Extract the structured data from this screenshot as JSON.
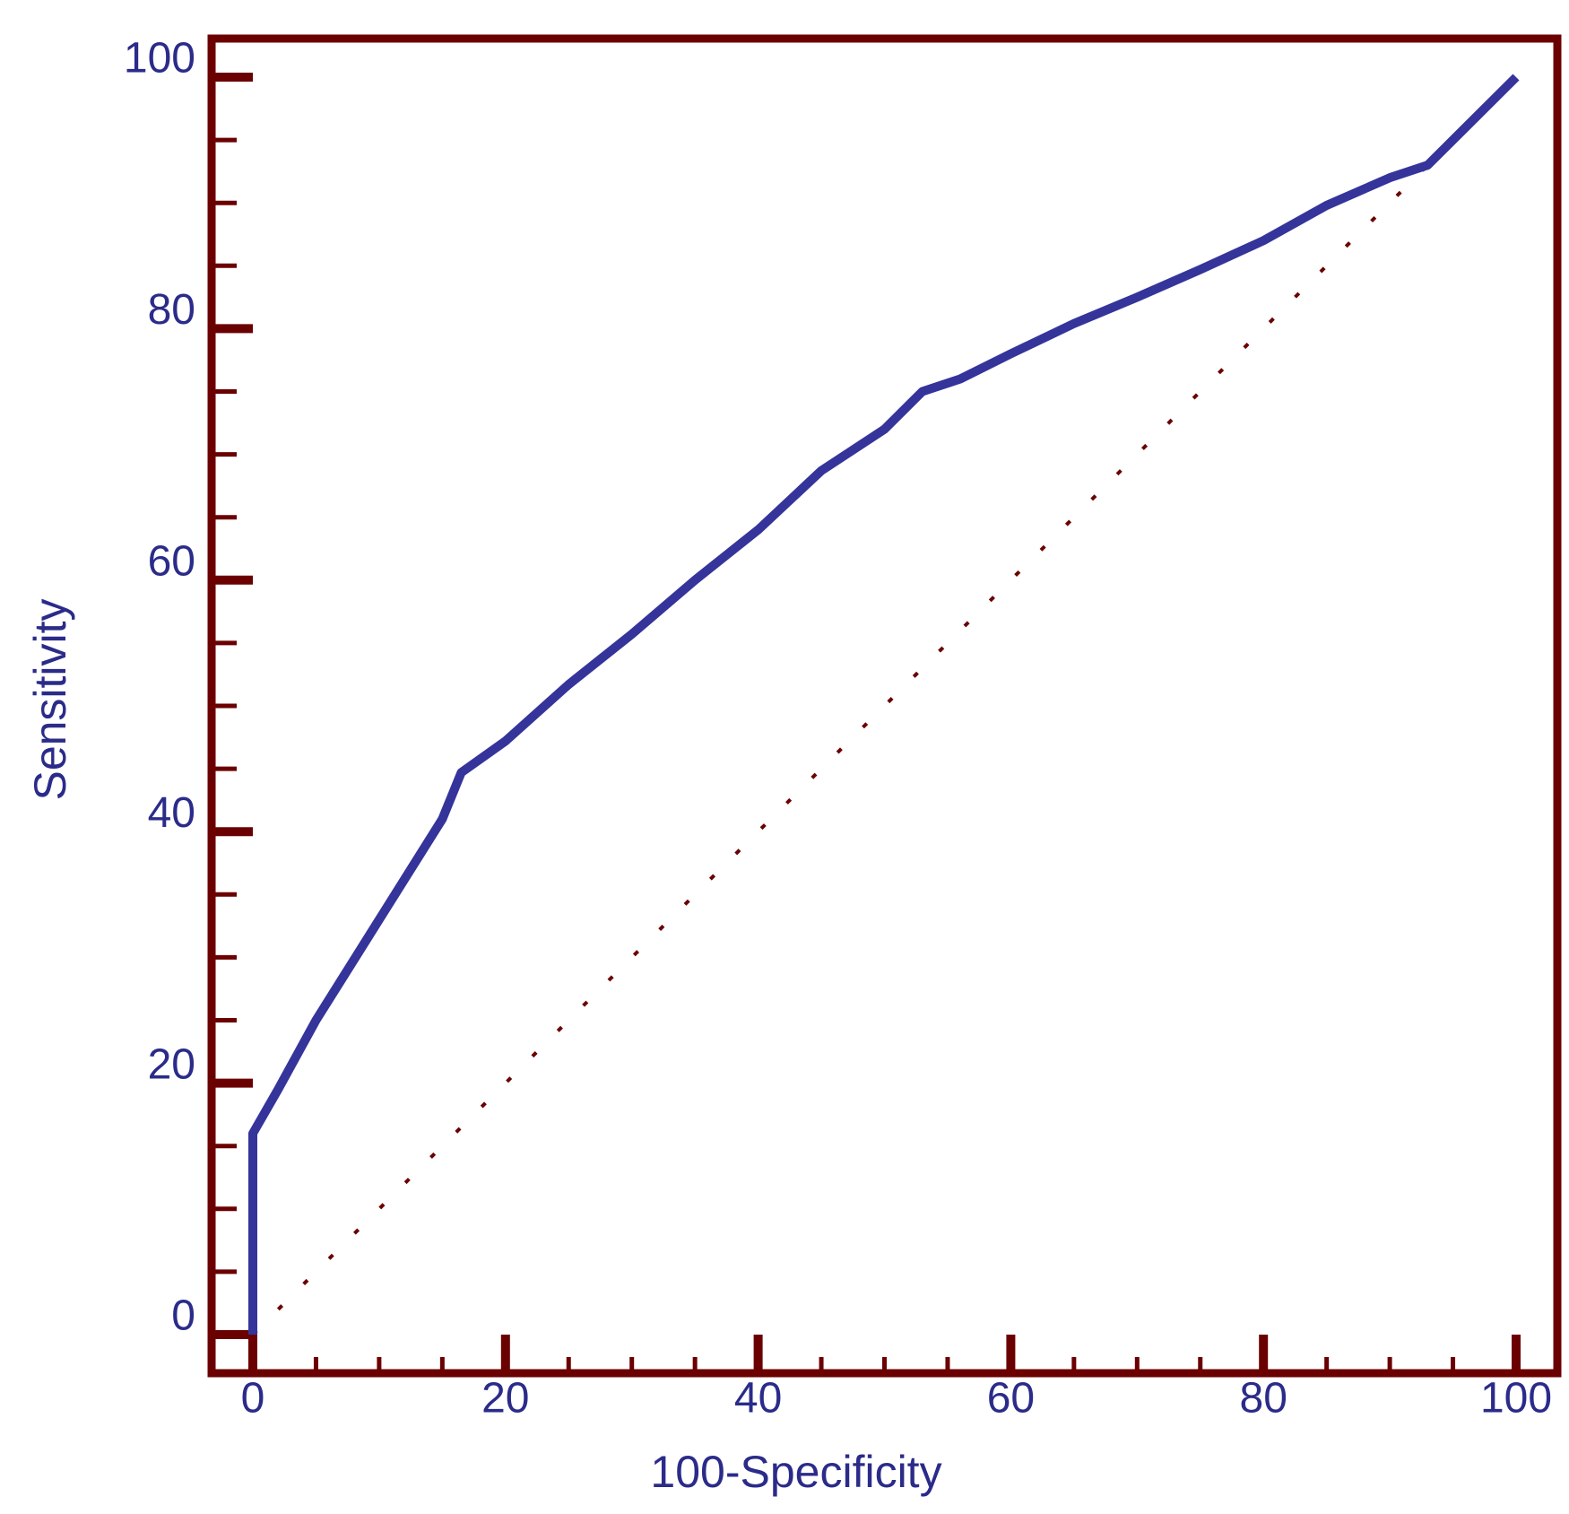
{
  "chart_data": {
    "type": "line",
    "x_label": "100-Specificity",
    "y_label": "Sensitivity",
    "xlim": [
      0,
      100
    ],
    "ylim": [
      0,
      100
    ],
    "xticks": [
      0,
      20,
      40,
      60,
      80,
      100
    ],
    "yticks": [
      0,
      20,
      40,
      60,
      80,
      100
    ],
    "x_minor_ticks": [
      5,
      10,
      15,
      25,
      30,
      35,
      45,
      50,
      55,
      65,
      70,
      75,
      85,
      90,
      95
    ],
    "y_minor_ticks": [
      5,
      10,
      15,
      25,
      30,
      35,
      45,
      50,
      55,
      65,
      70,
      75,
      85,
      90,
      95
    ],
    "frame_color": "#6b0000",
    "series": [
      {
        "color": "#35349a",
        "style": "solid",
        "x": [
          0,
          0,
          2,
          5,
          10,
          15,
          16.5,
          20,
          25,
          30,
          35,
          40,
          45,
          50,
          53,
          56,
          60,
          65,
          70,
          75,
          80,
          85,
          90,
          93,
          96,
          100
        ],
        "values": [
          0,
          16,
          19.5,
          25,
          33,
          41,
          44.7,
          47.2,
          51.7,
          55.7,
          60,
          64,
          68.7,
          72,
          75,
          76,
          78,
          80.4,
          82.5,
          84.7,
          87,
          89.8,
          92,
          93,
          96,
          100
        ]
      },
      {
        "color": "#6b0000",
        "style": "dotted",
        "x": [
          0,
          100
        ],
        "values": [
          0,
          100
        ]
      }
    ]
  }
}
